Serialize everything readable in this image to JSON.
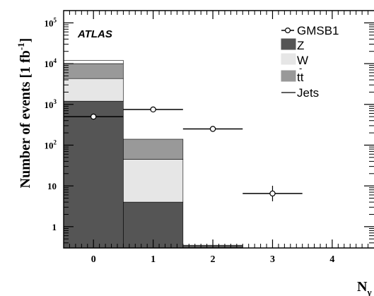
{
  "chart_data": {
    "type": "bar",
    "yscale": "log",
    "ylim": [
      0.3,
      200000
    ],
    "xlim": [
      -0.5,
      4.7
    ],
    "ylabel": "Number of events [1 fb",
    "ylabel_sup": "-1",
    "ylabel_end": "]",
    "xlabel": "N",
    "xlabel_sub": "γ",
    "annotation": "ATLAS",
    "x_ticks": [
      "0",
      "1",
      "2",
      "3",
      "4"
    ],
    "y_ticks": [
      {
        "value": 1,
        "base": "1",
        "sup": ""
      },
      {
        "value": 10,
        "base": "10",
        "sup": ""
      },
      {
        "value": 100,
        "base": "10",
        "sup": "2"
      },
      {
        "value": 1000,
        "base": "10",
        "sup": "3"
      },
      {
        "value": 10000,
        "base": "10",
        "sup": "4"
      },
      {
        "value": 100000,
        "base": "10",
        "sup": "5"
      }
    ],
    "stack_order": [
      "Z",
      "W",
      "tt",
      "Jets"
    ],
    "stacked_series": [
      {
        "key": "Z",
        "color": "#555555",
        "values": [
          1200,
          4,
          0.35,
          0,
          0
        ]
      },
      {
        "key": "W",
        "color": "#e6e6e6",
        "values": [
          3100,
          41,
          0,
          0,
          0
        ]
      },
      {
        "key": "tt",
        "color": "#999999",
        "values": [
          5700,
          95,
          0,
          0,
          0
        ]
      },
      {
        "key": "Jets",
        "color": "#ffffff",
        "values": [
          2000,
          0,
          0,
          0,
          0
        ]
      }
    ],
    "signal": {
      "name": "GMSB1",
      "points": [
        {
          "x": 0,
          "y": 500
        },
        {
          "x": 1,
          "y": 750
        },
        {
          "x": 2,
          "y": 250
        },
        {
          "x": 3,
          "y": 6.5
        }
      ]
    },
    "legend": {
      "position": "top-right",
      "entries": [
        {
          "key": "GMSB1",
          "label": "GMSB1",
          "style": "marker"
        },
        {
          "key": "Z",
          "label": "Z",
          "style": "box",
          "color": "#555555"
        },
        {
          "key": "W",
          "label": "W",
          "style": "box",
          "color": "#e6e6e6"
        },
        {
          "key": "tt",
          "label": "tt",
          "overbar": "-",
          "style": "box",
          "color": "#999999"
        },
        {
          "key": "Jets",
          "label": "Jets",
          "style": "line",
          "color": "#ffffff"
        }
      ]
    }
  }
}
